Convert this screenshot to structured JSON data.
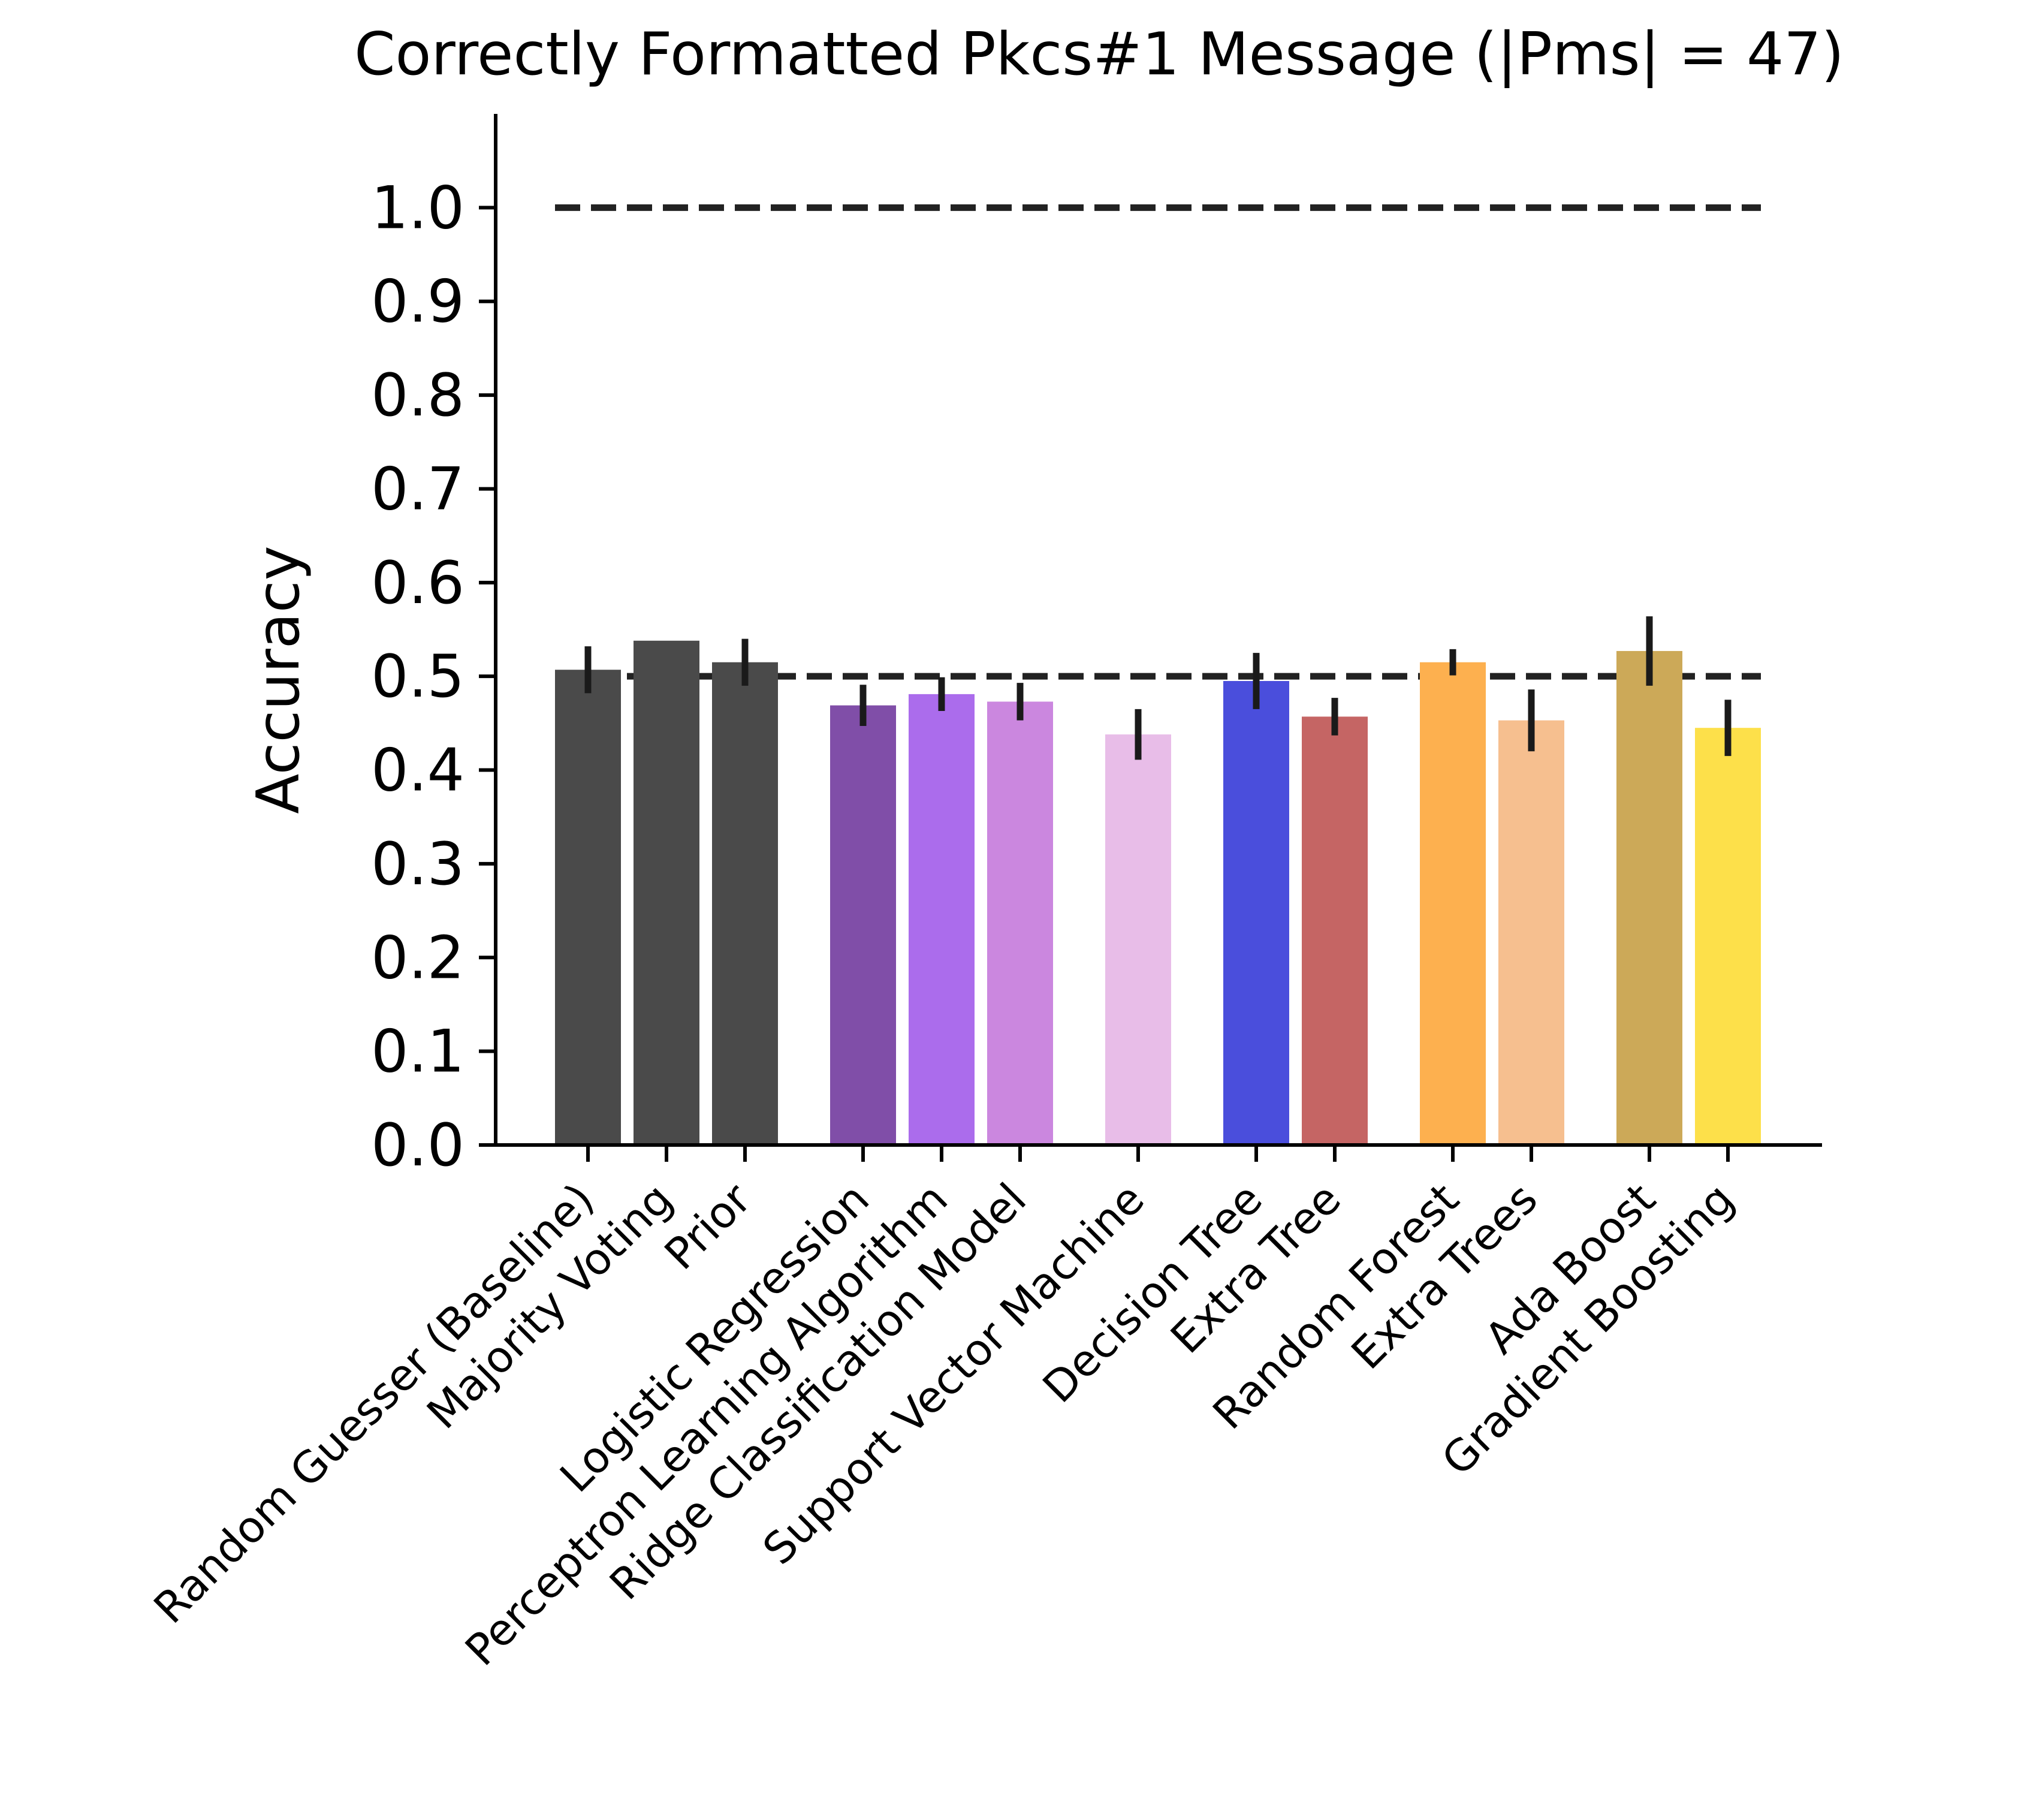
{
  "chart_data": {
    "type": "bar",
    "title": "Correctly Formatted Pkcs#1 Message  (|Pms| = 47)",
    "ylabel": "Accuracy",
    "ylim": [
      0,
      1.1
    ],
    "yticks": [
      "0.0",
      "0.1",
      "0.2",
      "0.3",
      "0.4",
      "0.5",
      "0.6",
      "0.7",
      "0.8",
      "0.9",
      "1.0"
    ],
    "grid": false,
    "reference_lines": [
      1.0,
      0.5
    ],
    "categories": [
      "Random Guesser (Baseline)",
      "Majority Voting",
      "Prior",
      "Logistic Regression",
      "Perceptron Learning Algorithm",
      "Ridge Classification Model",
      "Support Vector Machine",
      "Decision Tree",
      "Extra Tree",
      "Random Forest",
      "Extra Trees",
      "Ada Boost",
      "Gradient Boosting"
    ],
    "groups": [
      0,
      0,
      0,
      1,
      1,
      1,
      2,
      3,
      3,
      4,
      4,
      5,
      5
    ],
    "values": [
      0.507,
      0.538,
      0.515,
      0.469,
      0.481,
      0.473,
      0.438,
      0.495,
      0.457,
      0.515,
      0.453,
      0.527,
      0.445
    ],
    "errors": [
      0.025,
      0.0,
      0.025,
      0.022,
      0.018,
      0.02,
      0.027,
      0.03,
      0.02,
      0.014,
      0.033,
      0.037,
      0.03
    ],
    "colors": [
      "#4a4a4a",
      "#4a4a4a",
      "#4a4a4a",
      "#804ea8",
      "#ab6cec",
      "#cb87df",
      "#e8bde8",
      "#4a4edc",
      "#c56564",
      "#fdb04f",
      "#f6bf8f",
      "#cca958",
      "#fde04a"
    ]
  }
}
